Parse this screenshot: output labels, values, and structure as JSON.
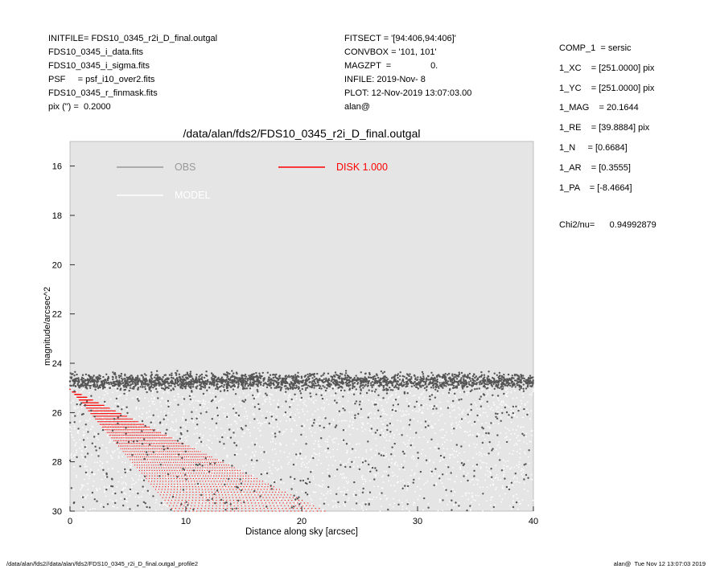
{
  "header_left": [
    "INITFILE= FDS10_0345_r2i_D_final.outgal",
    "FDS10_0345_i_data.fits",
    "FDS10_0345_i_sigma.fits",
    "PSF     = psf_i10_over2.fits",
    "FDS10_0345_r_finmask.fits",
    "pix (\") =  0.2000"
  ],
  "header_mid": [
    "FITSECT = '[94:406,94:406]'",
    "CONVBOX = '101, 101'",
    "MAGZPT  =                0.",
    "INFILE: 2019-Nov- 8",
    "PLOT: 12-Nov-2019 13:07:03.00",
    "alan@"
  ],
  "header_right": [
    "COMP_1  = sersic",
    "1_XC    = [251.0000] pix",
    "1_YC    = [251.0000] pix",
    "1_MAG    = 20.1644",
    "1_RE    = [39.8884] pix",
    "1_N     = [0.6684]",
    "1_AR    = [0.3555]",
    "1_PA    = [-8.4664]"
  ],
  "chi2": "Chi2/nu=      0.94992879",
  "footer_left": "/data/alan/fds2//data/alan/fds2/FDS10_0345_r2i_D_final.outgal_profile2",
  "footer_right": "alan@  Tue Nov 12 13:07:03 2019",
  "chart_data": {
    "type": "scatter",
    "title": "/data/alan/fds2/FDS10_0345_r2i_D_final.outgal",
    "xlabel": "Distance along sky [arcsec]",
    "ylabel": "magnitude/arcsec^2",
    "xlim": [
      0,
      40
    ],
    "ylim": [
      30,
      15
    ],
    "x_ticks": [
      0,
      10,
      20,
      30,
      40
    ],
    "y_ticks": [
      16,
      18,
      20,
      22,
      24,
      26,
      28,
      30
    ],
    "y_inverted": true,
    "grid": false,
    "background": "#e5e5e5",
    "legend_placement": "top-left",
    "legend": [
      {
        "label": "OBS",
        "color": "#999999"
      },
      {
        "label": "MODEL",
        "color": "#ffffff"
      },
      {
        "label": "DISK  1.000",
        "color": "#ff0000"
      }
    ],
    "series": [
      {
        "name": "OBS",
        "color": "#555555",
        "description_points": "dense band of dark points between magnitude ~24.2 and ~25.3 over 0-40 arcsec, plus sparse dark points scattered down to 30"
      },
      {
        "name": "MODEL",
        "color": "#ffffff",
        "description_points": "white points scattered between ~24.5 and 30"
      },
      {
        "name": "DISK  1.000",
        "color": "#ff0000",
        "fan_start": [
          0,
          25.05
        ],
        "fan_end_low": [
          9,
          30
        ],
        "fan_end_high": [
          22,
          30
        ]
      }
    ]
  }
}
